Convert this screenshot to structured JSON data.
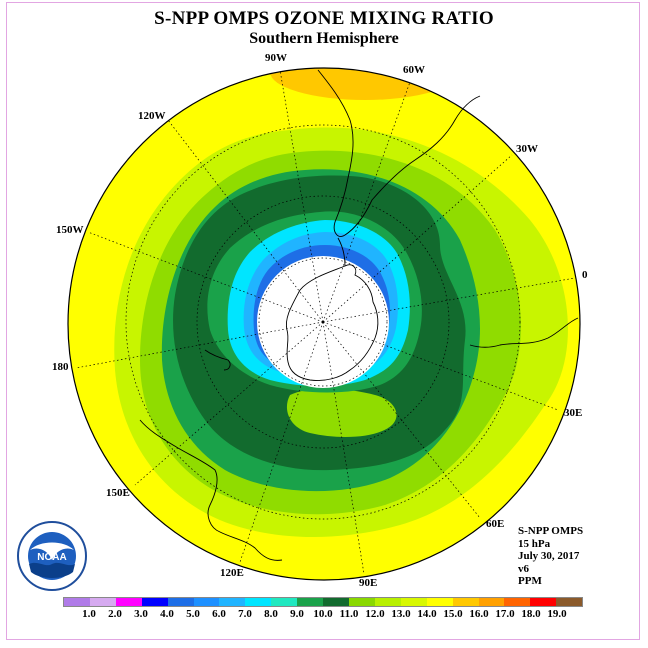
{
  "title": "S-NPP OMPS OZONE MIXING RATIO",
  "subtitle": "Southern Hemisphere",
  "longitude_labels": [
    "90W",
    "60W",
    "30W",
    "0",
    "30E",
    "60E",
    "90E",
    "120E",
    "150E",
    "180",
    "150W",
    "120W"
  ],
  "info": {
    "instrument": "S-NPP OMPS",
    "pressure": "15 hPa",
    "date": "July 30, 2017",
    "version": "v6",
    "units": "PPM"
  },
  "logo_text": "NOAA",
  "colorbar": {
    "colors": [
      "#b07be8",
      "#d6aaf0",
      "#ff00ff",
      "#0000ff",
      "#1e6ee6",
      "#1e90ff",
      "#20b4ff",
      "#00e5ff",
      "#20e8c0",
      "#1aa24a",
      "#126b2e",
      "#8ad800",
      "#b8f000",
      "#d8f800",
      "#ffff00",
      "#ffc800",
      "#ffa000",
      "#ff6400",
      "#ff0000",
      "#8b5a2b"
    ],
    "labels": [
      "1.0",
      "2.0",
      "3.0",
      "4.0",
      "5.0",
      "6.0",
      "7.0",
      "8.0",
      "9.0",
      "10.0",
      "11.0",
      "12.0",
      "13.0",
      "14.0",
      "15.0",
      "16.0",
      "17.0",
      "18.0",
      "19.0"
    ]
  },
  "map_colors": {
    "yellow": "#ffff00",
    "orange": "#ffc800",
    "yellow_green": "#c8f500",
    "light_green": "#90dc00",
    "green": "#1aa24a",
    "dark_green": "#126b2e",
    "cyan": "#00e5ff",
    "sky": "#20b4ff",
    "blue": "#1e6ee6",
    "no_data": "#ffffff"
  }
}
